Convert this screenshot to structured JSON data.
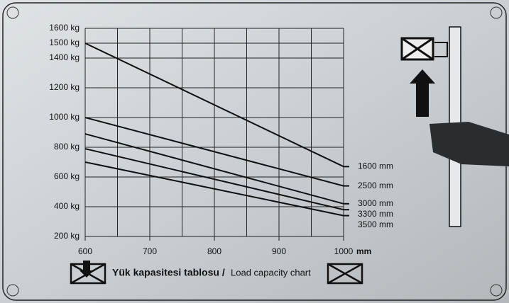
{
  "chart_data": {
    "type": "line",
    "title": "Yük kapasitesi tablosu /",
    "subtitle": "Load capacity chart",
    "x_label": "mm",
    "x": [
      600,
      1000
    ],
    "series": [
      {
        "name": "1600 mm",
        "color": "#111111",
        "values": [
          1500,
          670
        ]
      },
      {
        "name": "2500 mm",
        "color": "#111111",
        "values": [
          1000,
          540
        ]
      },
      {
        "name": "3000 mm",
        "color": "#111111",
        "values": [
          890,
          420
        ]
      },
      {
        "name": "3300 mm",
        "color": "#111111",
        "values": [
          790,
          380
        ]
      },
      {
        "name": "3500 mm",
        "color": "#111111",
        "values": [
          700,
          340
        ]
      }
    ],
    "xlim": [
      600,
      1000
    ],
    "xticks": [
      600,
      700,
      800,
      900,
      1000
    ],
    "ylim": [
      200,
      1600
    ],
    "yticks": [
      {
        "value": 200,
        "label": "200 kg"
      },
      {
        "value": 400,
        "label": "400 kg"
      },
      {
        "value": 600,
        "label": "600 kg"
      },
      {
        "value": 800,
        "label": "800 kg"
      },
      {
        "value": 1000,
        "label": "1000 kg"
      },
      {
        "value": 1200,
        "label": "1200 kg"
      },
      {
        "value": 1400,
        "label": "1400 kg"
      },
      {
        "value": 1500,
        "label": "1500 kg"
      },
      {
        "value": 1600,
        "label": "1600 kg"
      }
    ],
    "grid": true
  }
}
